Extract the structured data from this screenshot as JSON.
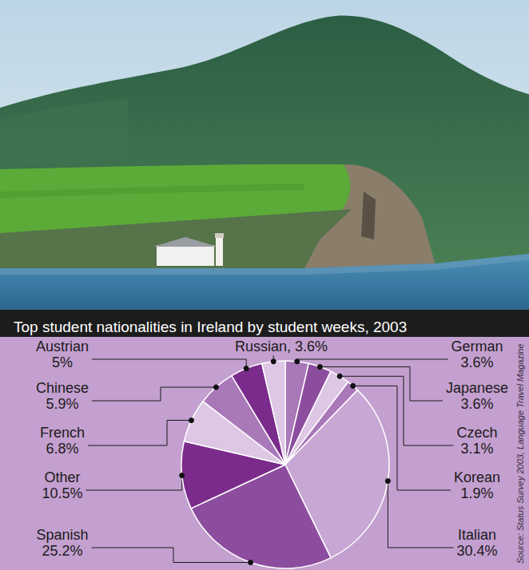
{
  "chart_data": {
    "type": "pie",
    "title": "Top student nationalities in Ireland by student weeks, 2003",
    "source": "Source: Status Survey 2003, Language Travel Magazine",
    "categories": [
      "German",
      "Japanese",
      "Czech",
      "Korean",
      "Italian",
      "Spanish",
      "Other",
      "French",
      "Chinese",
      "Austrian",
      "Russian"
    ],
    "values": [
      3.6,
      3.6,
      3.1,
      1.9,
      30.4,
      25.2,
      10.5,
      6.8,
      5.9,
      5,
      3.6
    ],
    "labels": [
      [
        "German",
        "3.6%"
      ],
      [
        "Japanese",
        "3.6%"
      ],
      [
        "Czech",
        "3.1%"
      ],
      [
        "Korean",
        "1.9%"
      ],
      [
        "Italian",
        "30.4%"
      ],
      [
        "Spanish",
        "25.2%"
      ],
      [
        "Other",
        "10.5%"
      ],
      [
        "French",
        "6.8%"
      ],
      [
        "Chinese",
        "5.9%"
      ],
      [
        "Austrian",
        "5%"
      ],
      [
        "Russian, 3.6%"
      ]
    ],
    "colors": [
      "#a878b8",
      "#8d4d9f",
      "#ddc7e4",
      "#a878b8",
      "#c8a7d4",
      "#8d4d9f",
      "#7a2b8b",
      "#ddc7e4",
      "#a878b8",
      "#7a2b8b",
      "#ddc7e4"
    ]
  }
}
